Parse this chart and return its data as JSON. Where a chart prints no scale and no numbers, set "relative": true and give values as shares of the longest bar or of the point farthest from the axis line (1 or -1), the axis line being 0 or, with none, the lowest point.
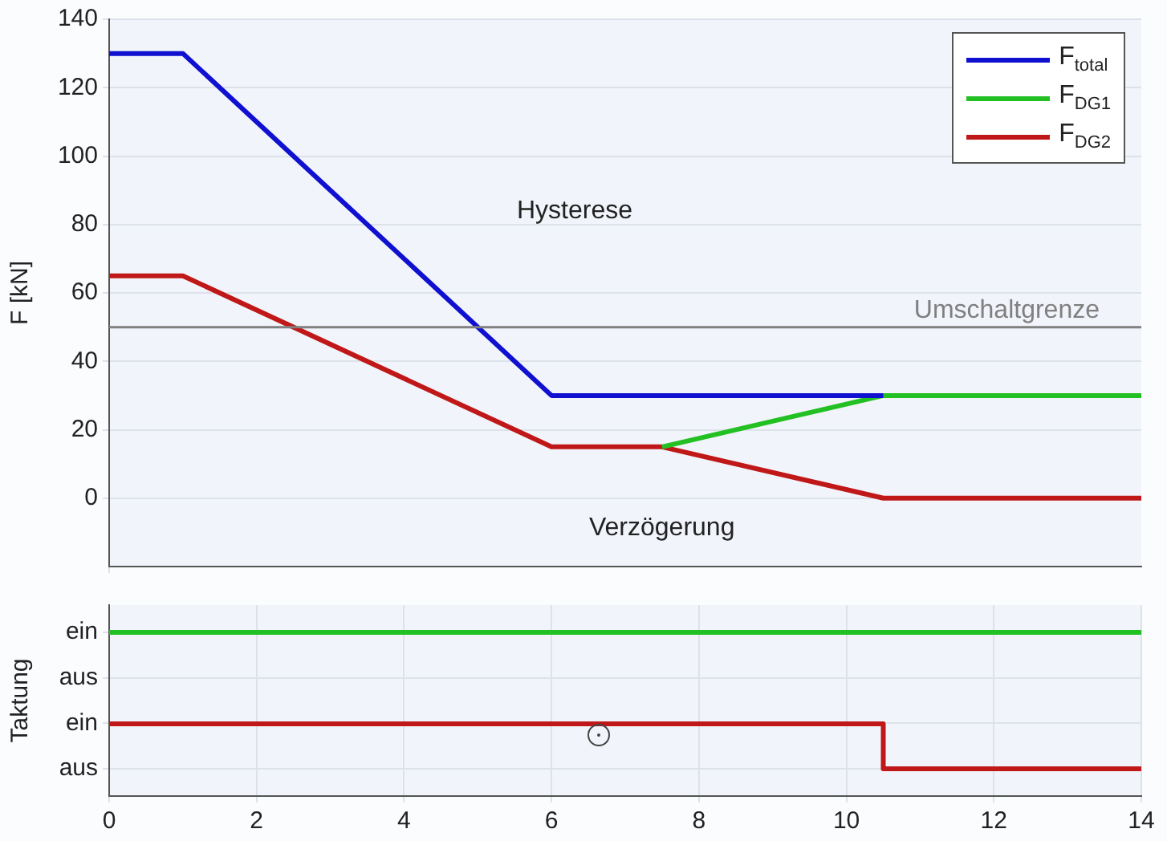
{
  "chart_data": [
    {
      "type": "line",
      "ylabel": "F [kN]",
      "xlim": [
        0,
        14
      ],
      "ylim": [
        -20,
        140
      ],
      "yticks": [
        0,
        20,
        40,
        60,
        80,
        100,
        120,
        140
      ],
      "grid": true,
      "legend": "top right",
      "tick_labels": "y",
      "marker": "none",
      "series": [
        {
          "name": "F$_{total}$",
          "color": "#1010d0",
          "x": [
            0,
            1,
            6,
            10.5
          ],
          "values": [
            130,
            130,
            30,
            30
          ]
        },
        {
          "name": "F$_{DG1}$",
          "color": "#22c022",
          "x": [
            7.5,
            10.5,
            14
          ],
          "values": [
            15,
            30,
            30
          ]
        },
        {
          "name": "F$_{DG2}$",
          "color": "#c01818",
          "x": [
            0,
            1,
            6,
            7.5,
            10.5,
            14
          ],
          "values": [
            65,
            65,
            15,
            15,
            0,
            0
          ]
        }
      ],
      "ref_lines": [
        {
          "axis": "y",
          "value": 50,
          "label": "Umschaltgrenze",
          "color": "#808080"
        }
      ],
      "annotations": [
        "Hysterese",
        "Verzögerung"
      ]
    },
    {
      "type": "step",
      "ylabel": "Taktung",
      "xlim": [
        0,
        14
      ],
      "xticks": [
        0,
        2,
        4,
        6,
        8,
        10,
        12,
        14
      ],
      "relative": true,
      "y_categories": [
        "ein",
        "aus",
        "ein",
        "aus"
      ],
      "grid": true,
      "marker": "none",
      "series": [
        {
          "color": "#22c022",
          "x": [
            0,
            14
          ],
          "values": [
            1,
            1
          ]
        },
        {
          "color": "#c01818",
          "x": [
            0,
            10.5,
            14
          ],
          "values": [
            0.33,
            0,
            0
          ]
        }
      ]
    }
  ]
}
